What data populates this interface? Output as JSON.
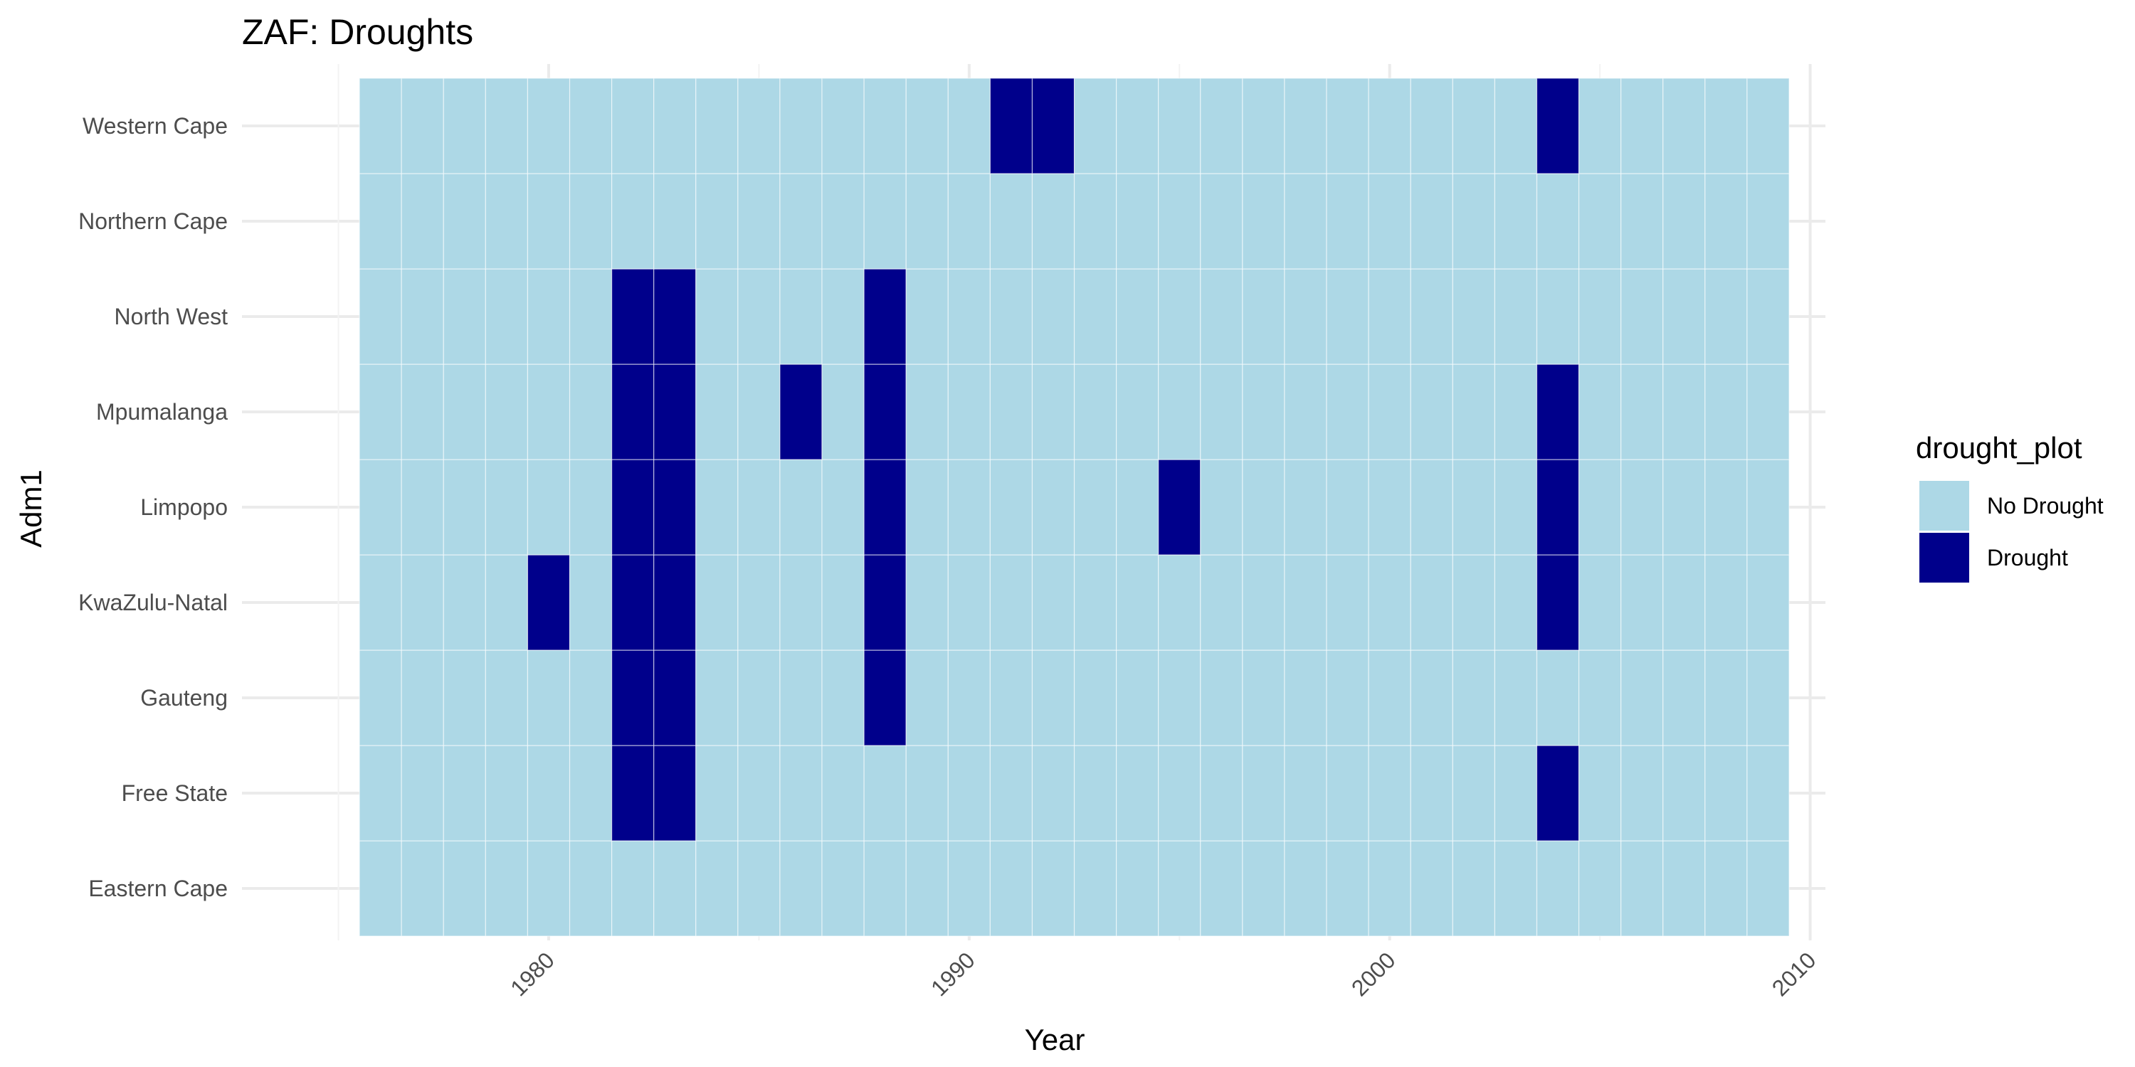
{
  "chart_data": {
    "type": "heatmap",
    "title": "ZAF: Droughts",
    "xlabel": "Year",
    "ylabel": "Adm1",
    "xlim": [
      1975,
      2010
    ],
    "x_ticks": [
      1980,
      1990,
      2000,
      2010
    ],
    "years": [
      1976,
      1977,
      1978,
      1979,
      1980,
      1981,
      1982,
      1983,
      1984,
      1985,
      1986,
      1987,
      1988,
      1989,
      1990,
      1991,
      1992,
      1993,
      1994,
      1995,
      1996,
      1997,
      1998,
      1999,
      2000,
      2001,
      2002,
      2003,
      2004,
      2005,
      2006,
      2007,
      2008,
      2009
    ],
    "regions": [
      "Eastern Cape",
      "Free State",
      "Gauteng",
      "KwaZulu-Natal",
      "Limpopo",
      "Mpumalanga",
      "North West",
      "Northern Cape",
      "Western Cape"
    ],
    "droughts": {
      "Eastern Cape": [],
      "Free State": [
        1982,
        1983,
        2004
      ],
      "Gauteng": [
        1982,
        1983,
        1988
      ],
      "KwaZulu-Natal": [
        1980,
        1982,
        1983,
        1988,
        2004
      ],
      "Limpopo": [
        1982,
        1983,
        1988,
        1995,
        2004
      ],
      "Mpumalanga": [
        1982,
        1983,
        1986,
        1988,
        2004
      ],
      "North West": [
        1982,
        1983,
        1988
      ],
      "Northern Cape": [],
      "Western Cape": [
        1991,
        1992,
        2004
      ]
    },
    "legend": {
      "title": "drought_plot",
      "position": "right",
      "entries": [
        {
          "label": "No Drought",
          "color": "#add8e6"
        },
        {
          "label": "Drought",
          "color": "#00008b"
        }
      ]
    },
    "grid": true
  }
}
